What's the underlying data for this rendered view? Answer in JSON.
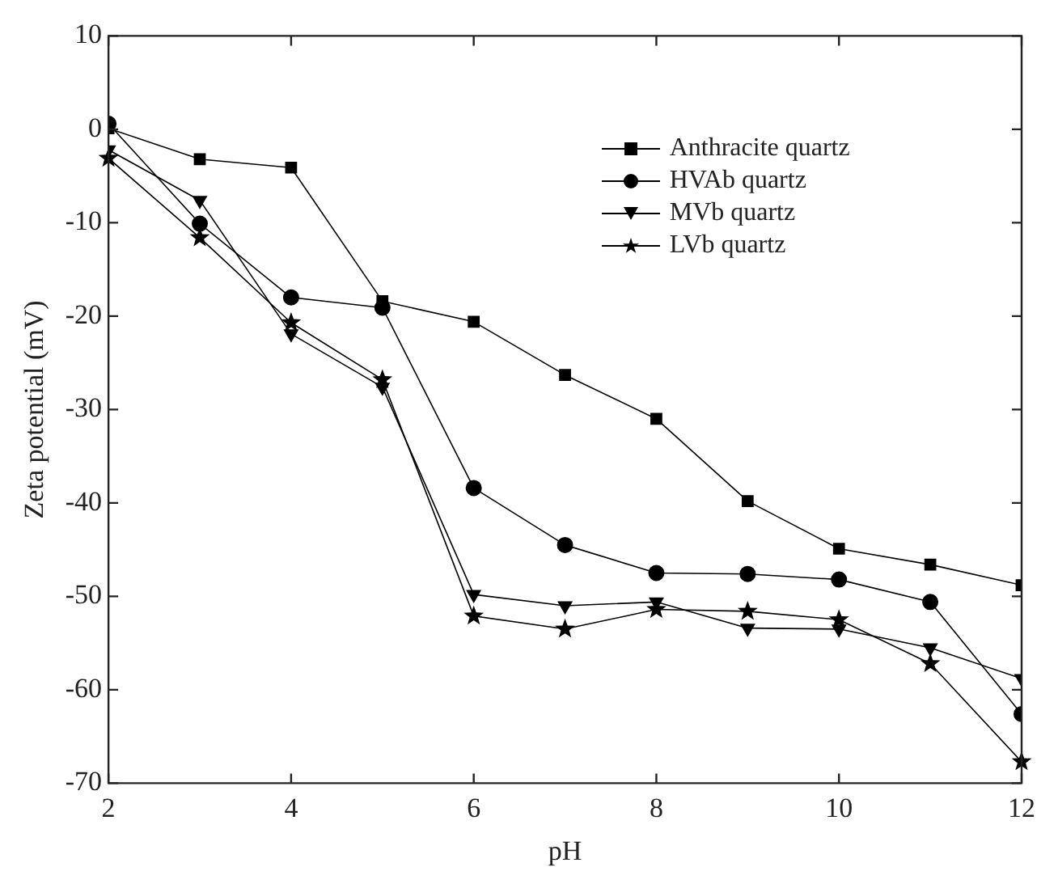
{
  "chart_data": {
    "type": "line",
    "xlabel": "pH",
    "ylabel": "Zeta potential (mV)",
    "x": [
      2,
      3,
      4,
      5,
      6,
      7,
      8,
      9,
      10,
      11,
      12
    ],
    "xlim": [
      2,
      12
    ],
    "xticks": [
      2,
      4,
      6,
      8,
      10,
      12
    ],
    "ylim": [
      -70,
      10
    ],
    "yticks": [
      -70,
      -60,
      -50,
      -40,
      -30,
      -20,
      -10,
      0,
      10
    ],
    "grid": false,
    "legend": "top right",
    "line_style": "solid",
    "series": [
      {
        "name": "Anthracite quartz",
        "color": "#000000",
        "marker": "square",
        "values": [
          0.1,
          -3.2,
          -4.1,
          -18.4,
          -20.6,
          -26.3,
          -31.0,
          -39.8,
          -44.9,
          -46.6,
          -48.8
        ]
      },
      {
        "name": "HVAb quartz",
        "color": "#000000",
        "marker": "circle",
        "values": [
          0.6,
          -10.1,
          -18.0,
          -19.1,
          -38.4,
          -44.5,
          -47.5,
          -47.6,
          -48.2,
          -50.6,
          -62.6
        ]
      },
      {
        "name": "MVb quartz",
        "color": "#000000",
        "marker": "triangle",
        "values": [
          -2.2,
          -7.6,
          -21.9,
          -27.6,
          -49.8,
          -51.0,
          -50.6,
          -53.4,
          -53.5,
          -55.5,
          -58.8
        ]
      },
      {
        "name": "LVb quartz",
        "color": "#000000",
        "marker": "star",
        "values": [
          -3.1,
          -11.6,
          -20.7,
          -26.8,
          -52.1,
          -53.5,
          -51.4,
          -51.6,
          -52.5,
          -57.2,
          -67.7
        ]
      }
    ]
  }
}
